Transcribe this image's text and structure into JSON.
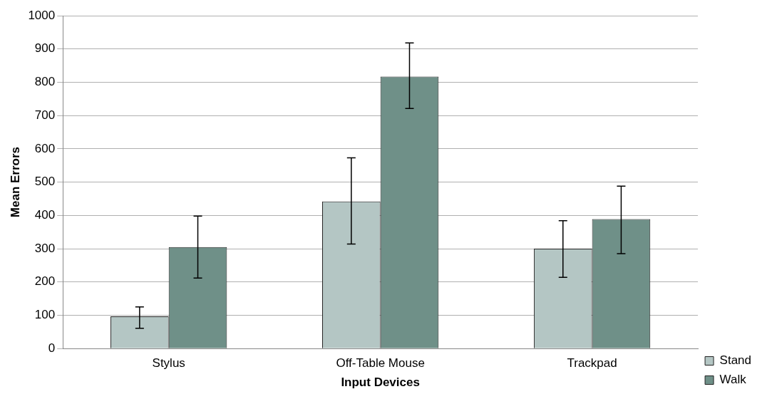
{
  "chart_data": {
    "type": "bar",
    "xlabel": "Input Devices",
    "ylabel": "Mean Errors",
    "categories": [
      "Stylus",
      "Off-Table Mouse",
      "Trackpad"
    ],
    "series": [
      {
        "name": "Stand",
        "color": "#b4c6c4",
        "values": [
          97,
          442,
          300
        ],
        "errors": [
          [
            61,
            125
          ],
          [
            314,
            573
          ],
          [
            214,
            384
          ]
        ]
      },
      {
        "name": "Walk",
        "color": "#6f9088",
        "values": [
          305,
          817,
          389
        ],
        "errors": [
          [
            212,
            398
          ],
          [
            721,
            918
          ],
          [
            285,
            488
          ]
        ]
      }
    ],
    "ylim": [
      0,
      1000
    ],
    "yticks": [
      0,
      100,
      200,
      300,
      400,
      500,
      600,
      700,
      800,
      900,
      1000
    ],
    "grid": "y",
    "legend": "right"
  }
}
